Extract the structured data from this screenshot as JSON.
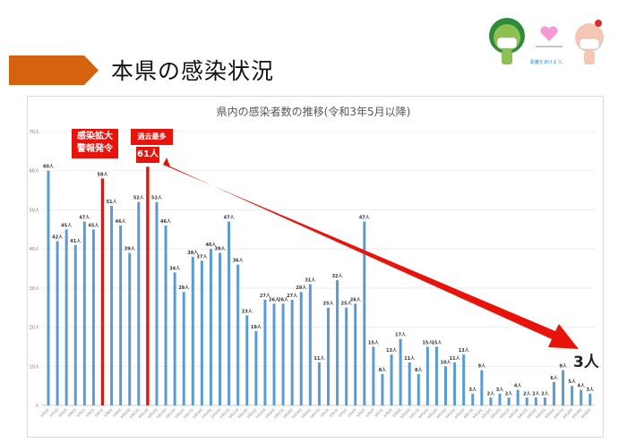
{
  "header": {
    "title": "本県の感染状況",
    "accent_color": "#d4620f"
  },
  "mascot": {
    "caption": "距離をあけよう。"
  },
  "chart_data": {
    "type": "bar",
    "title": "県内の感染者数の推移(令和3年5月以降)",
    "xlabel": "",
    "ylabel": "",
    "ylim": [
      0,
      70
    ],
    "yticks": [
      "人",
      "10人",
      "20人",
      "30人",
      "40人",
      "50人",
      "60人",
      "70人"
    ],
    "grid": true,
    "unit": "人",
    "categories": [
      "5月1日",
      "5月2日",
      "5月3日",
      "5月4日",
      "5月5日",
      "5月6日",
      "5月7日",
      "5月8日",
      "5月9日",
      "5月10日",
      "5月11日",
      "5月12日",
      "5月13日",
      "5月14日",
      "5月15日",
      "5月16日",
      "5月17日",
      "5月18日",
      "5月19日",
      "5月20日",
      "5月21日",
      "5月22日",
      "5月23日",
      "5月24日",
      "5月25日",
      "5月26日",
      "5月27日",
      "5月28日",
      "5月29日",
      "5月30日",
      "5月31日",
      "6月1日",
      "6月2日",
      "6月3日",
      "6月4日",
      "6月5日",
      "6月6日",
      "6月7日",
      "6月8日",
      "6月9日",
      "6月10日",
      "6月11日",
      "6月12日",
      "6月13日",
      "6月14日",
      "6月15日",
      "6月16日",
      "6月17日",
      "6月18日",
      "6月19日",
      "6月20日",
      "6月21日",
      "6月22日",
      "6月23日",
      "6月24日",
      "6月25日",
      "6月26日",
      "6月27日",
      "6月28日",
      "6月29日",
      "6月30日"
    ],
    "values": [
      60,
      42,
      45,
      41,
      47,
      45,
      58,
      51,
      46,
      39,
      52,
      61,
      52,
      46,
      34,
      29,
      38,
      37,
      40,
      39,
      47,
      36,
      23,
      19,
      27,
      26,
      26,
      27,
      29,
      31,
      11,
      25,
      32,
      25,
      26,
      47,
      15,
      8,
      13,
      17,
      11,
      8,
      15,
      15,
      10,
      11,
      13,
      3,
      9,
      2,
      3,
      2,
      4,
      2,
      2,
      2,
      6,
      9,
      5,
      4,
      3
    ],
    "highlighted": [
      "5月7日",
      "5月12日"
    ],
    "bar_color": "#5b9bd5",
    "highlight_color": "#e8140c",
    "annotations": {
      "alert": "感染拡大\n警報発令",
      "record_label": "過去最多",
      "record_value": "61人",
      "latest_value": "3人"
    }
  }
}
